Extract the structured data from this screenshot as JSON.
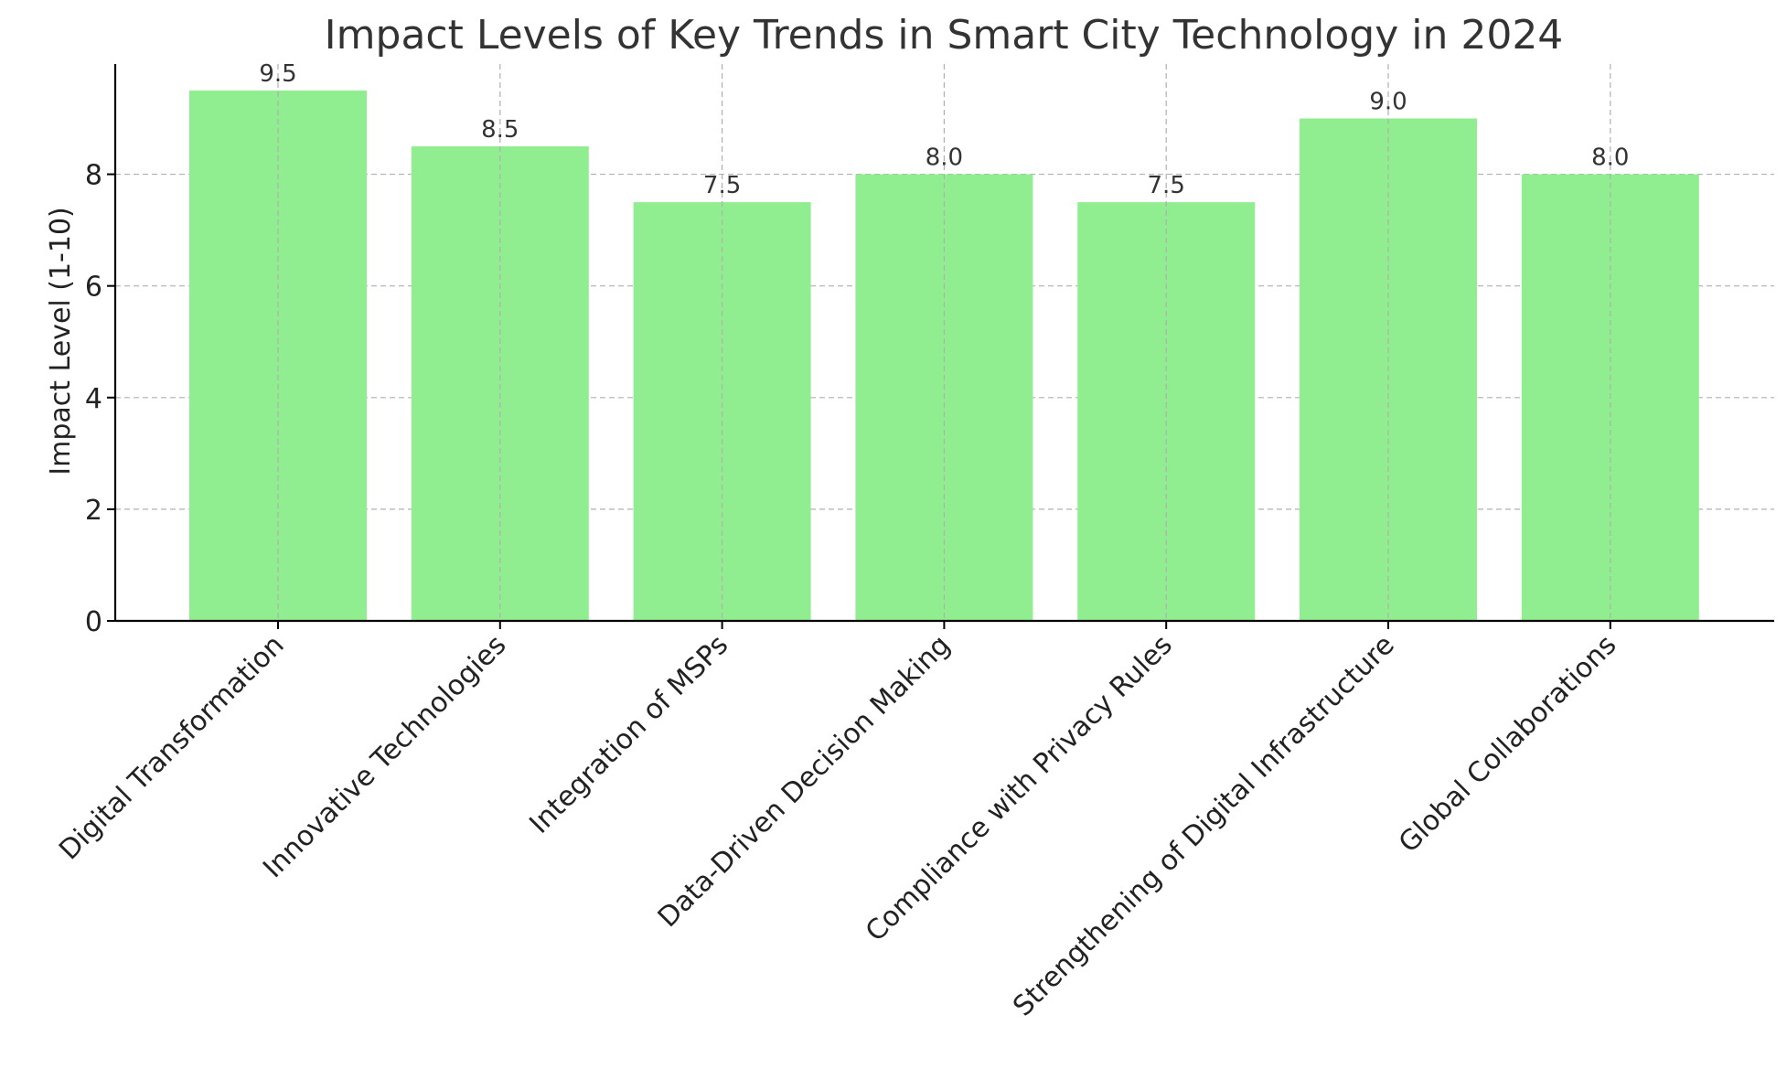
{
  "chart_data": {
    "type": "bar",
    "title": "Impact Levels of Key Trends in Smart City Technology in 2024",
    "xlabel": "",
    "ylabel": "Impact Level (1-10)",
    "categories": [
      "Digital Transformation",
      "Innovative Technologies",
      "Integration of MSPs",
      "Data-Driven Decision Making",
      "Compliance with Privacy Rules",
      "Strengthening of Digital Infrastructure",
      "Global Collaborations"
    ],
    "values": [
      9.5,
      8.5,
      7.5,
      8.0,
      7.5,
      9.0,
      8.0
    ],
    "value_labels": [
      "9.5",
      "8.5",
      "7.5",
      "8.0",
      "7.5",
      "9.0",
      "8.0"
    ],
    "ylim": [
      0,
      9.975
    ],
    "yticks": [
      0,
      2,
      4,
      6,
      8
    ],
    "grid": true,
    "bar_color": "#90ee90"
  }
}
